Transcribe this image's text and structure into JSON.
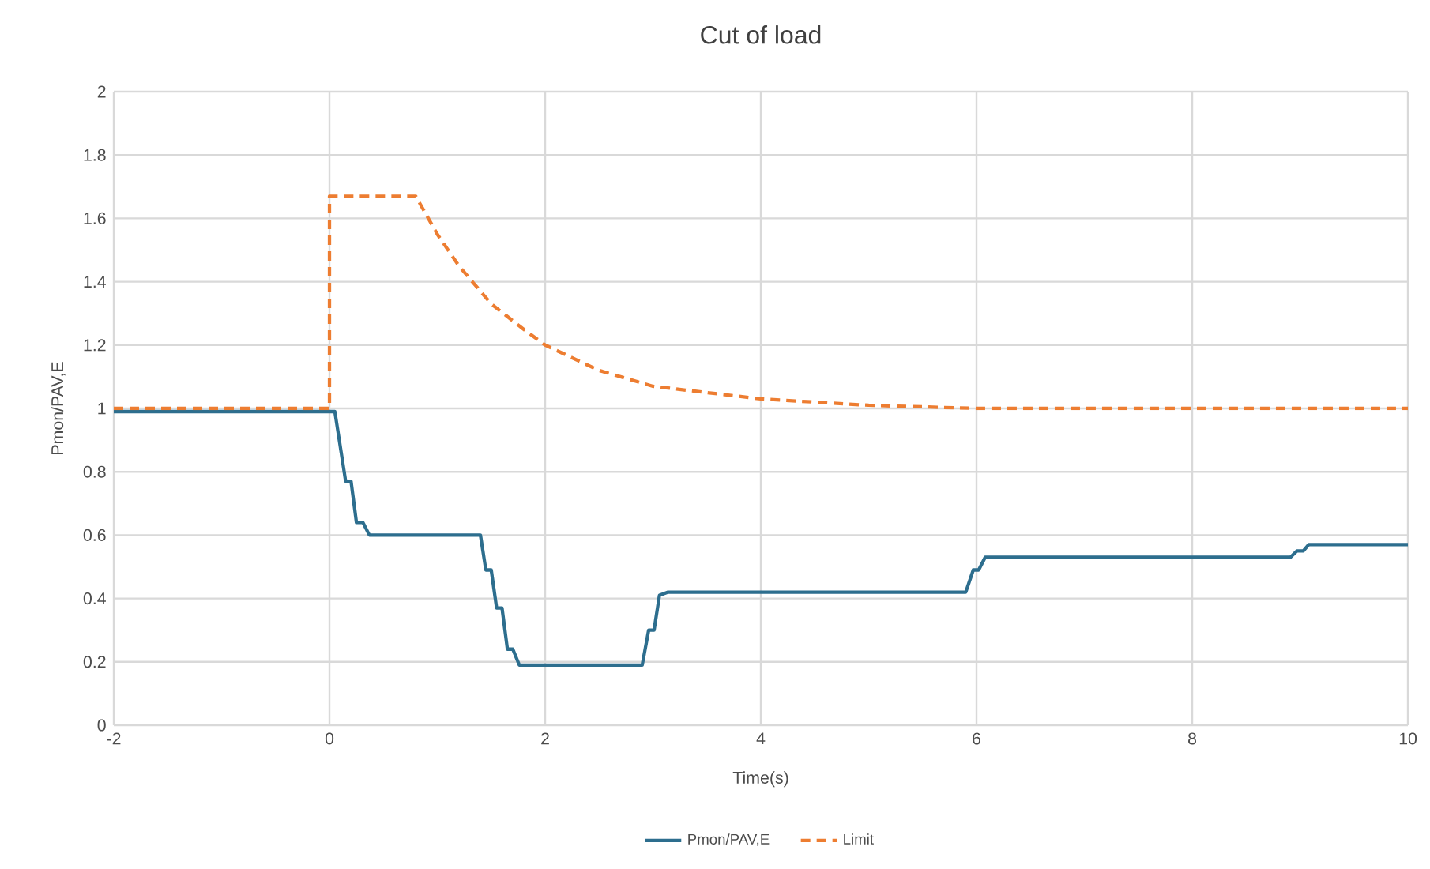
{
  "chart_data": {
    "type": "line",
    "title": "Cut of load",
    "xlabel": "Time(s)",
    "ylabel": "Pmon/PAV,E",
    "xlim": [
      -2,
      10
    ],
    "ylim": [
      0,
      2
    ],
    "xticks": [
      -2,
      0,
      2,
      4,
      6,
      8,
      10
    ],
    "yticks": [
      0,
      0.2,
      0.4,
      0.6,
      0.8,
      1,
      1.2,
      1.4,
      1.6,
      1.8,
      2
    ],
    "grid": true,
    "legend": "bottom",
    "marker": "none",
    "series": [
      {
        "name": "Pmon/PAV,E",
        "color": "#2d6e8e",
        "line_style": "solid",
        "x": [
          -2,
          0.05,
          0.15,
          0.2,
          0.25,
          0.31,
          0.37,
          1.4,
          1.45,
          1.5,
          1.55,
          1.6,
          1.65,
          1.7,
          1.76,
          2.9,
          2.96,
          3.01,
          3.06,
          3.14,
          5.9,
          5.97,
          6.02,
          6.08,
          8.91,
          8.97,
          9.03,
          9.08,
          10
        ],
        "values": [
          0.99,
          0.99,
          0.77,
          0.77,
          0.64,
          0.64,
          0.6,
          0.6,
          0.49,
          0.49,
          0.37,
          0.37,
          0.24,
          0.24,
          0.19,
          0.19,
          0.3,
          0.3,
          0.41,
          0.42,
          0.42,
          0.49,
          0.49,
          0.53,
          0.53,
          0.55,
          0.55,
          0.57,
          0.57
        ]
      },
      {
        "name": "Limit",
        "color": "#ed7d31",
        "line_style": "dashed",
        "x": [
          -2,
          0,
          0,
          0.8,
          1,
          1.2,
          1.5,
          1.8,
          2,
          2.5,
          3,
          3.5,
          4,
          5,
          6,
          10
        ],
        "values": [
          1,
          1,
          1.67,
          1.67,
          1.55,
          1.45,
          1.33,
          1.25,
          1.2,
          1.12,
          1.07,
          1.05,
          1.03,
          1.01,
          1,
          1
        ]
      }
    ]
  }
}
